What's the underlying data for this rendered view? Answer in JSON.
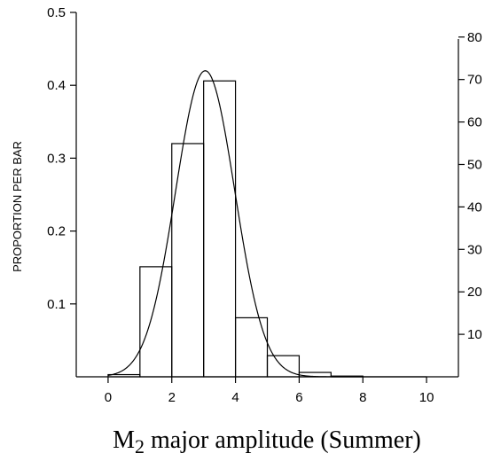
{
  "chart_data": {
    "type": "bar",
    "subtype": "histogram-with-normal-curve",
    "title": "",
    "xlabel": {
      "main": "M",
      "subscript": "2",
      "rest": " major amplitude (Summer)"
    },
    "ylabel_left": "PROPORTION PER BAR",
    "ylabel_right": "",
    "x_range": [
      -1,
      11
    ],
    "x_ticks": [
      0,
      2,
      4,
      6,
      8,
      10
    ],
    "x_tick_labels": [
      "0",
      "2",
      "4",
      "6",
      "8",
      "10"
    ],
    "y_left_range": [
      0,
      0.5
    ],
    "y_left_ticks": [
      0.1,
      0.2,
      0.3,
      0.4,
      0.5
    ],
    "y_left_tick_labels": [
      "0.1",
      "0.2",
      "0.3",
      "0.4",
      "0.5"
    ],
    "y_right_range": [
      0,
      85.8
    ],
    "y_right_ticks": [
      10,
      20,
      30,
      40,
      50,
      60,
      70,
      80
    ],
    "y_right_tick_labels": [
      "10",
      "20",
      "30",
      "40",
      "50",
      "60",
      "70",
      "80"
    ],
    "bins": [
      {
        "x0": 0,
        "x1": 1,
        "value": 0.003
      },
      {
        "x0": 1,
        "x1": 2,
        "value": 0.151
      },
      {
        "x0": 2,
        "x1": 3,
        "value": 0.32
      },
      {
        "x0": 3,
        "x1": 4,
        "value": 0.406
      },
      {
        "x0": 4,
        "x1": 5,
        "value": 0.081
      },
      {
        "x0": 5,
        "x1": 6,
        "value": 0.029
      },
      {
        "x0": 6,
        "x1": 7,
        "value": 0.006
      },
      {
        "x0": 7,
        "x1": 8,
        "value": 0.001
      },
      {
        "x0": 8,
        "x1": 9,
        "value": 0.0
      },
      {
        "x0": 9,
        "x1": 10,
        "value": 0.0
      }
    ],
    "normal_curve": {
      "mean": 3.05,
      "sd": 0.93,
      "peak": 0.42
    },
    "grid": false
  }
}
